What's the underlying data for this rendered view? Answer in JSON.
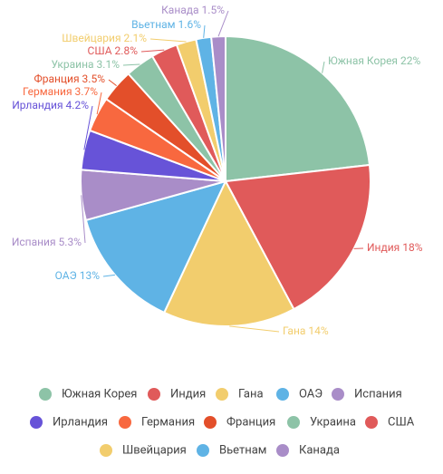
{
  "chart_data": {
    "type": "pie",
    "categories": [
      "Южная Корея",
      "Индия",
      "Гана",
      "ОАЭ",
      "Испания",
      "Ирландия",
      "Германия",
      "Франция",
      "Украина",
      "США",
      "Швейцария",
      "Вьетнам",
      "Канада"
    ],
    "values": [
      22,
      18,
      14,
      13,
      5.3,
      4.2,
      3.7,
      3.5,
      3.1,
      2.8,
      2.1,
      1.6,
      1.5
    ],
    "value_labels": [
      "22%",
      "18%",
      "14%",
      "13%",
      "5.3%",
      "4.2%",
      "3.7%",
      "3.5%",
      "3.1%",
      "2.8%",
      "2.1%",
      "1.6%",
      "1.5%"
    ],
    "colors": [
      "#8dc3a7",
      "#e05a5a",
      "#f2cd6d",
      "#5fb3e5",
      "#a98dc8",
      "#6753d8",
      "#f8683f",
      "#e34f2a",
      "#8dc3a7",
      "#e05a5a",
      "#f2cd6d",
      "#5fb3e5",
      "#a98dc8"
    ],
    "legend": "bottom"
  }
}
